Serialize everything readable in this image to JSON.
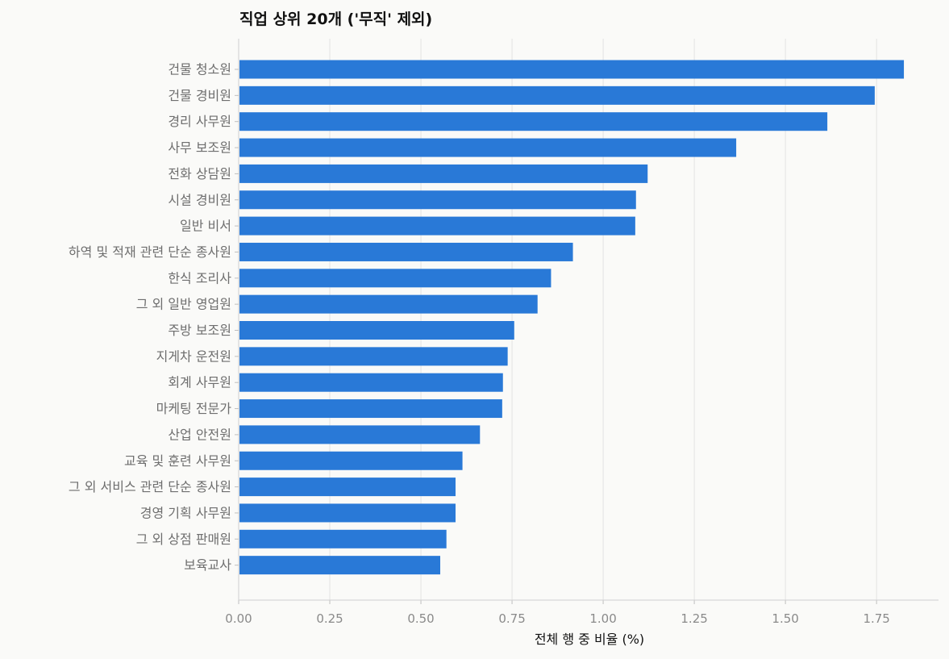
{
  "chart_data": {
    "type": "bar",
    "orientation": "horizontal",
    "title": "직업 상위 20개 ('무직' 제외)",
    "xlabel": "전체 행 중 비율 (%)",
    "ylabel": "",
    "xlim": [
      0,
      1.92
    ],
    "x_ticks": [
      0.0,
      0.25,
      0.5,
      0.75,
      1.0,
      1.25,
      1.5,
      1.75
    ],
    "x_tick_labels": [
      "0.00",
      "0.25",
      "0.50",
      "0.75",
      "1.00",
      "1.25",
      "1.50",
      "1.75"
    ],
    "grid": "vertical",
    "categories": [
      "건물 청소원",
      "건물 경비원",
      "경리 사무원",
      "사무 보조원",
      "전화 상담원",
      "시설 경비원",
      "일반 비서",
      "하역 및 적재 관련 단순 종사원",
      "한식 조리사",
      "그 외 일반 영업원",
      "주방 보조원",
      "지게차 운전원",
      "회계 사무원",
      "마케팅 전문가",
      "산업 안전원",
      "교육 및 훈련 사무원",
      "그 외 서비스 관련 단순 종사원",
      "경영 기획 사무원",
      "그 외 상점 판매원",
      "보육교사"
    ],
    "values": [
      1.825,
      1.745,
      1.615,
      1.365,
      1.122,
      1.09,
      1.088,
      0.917,
      0.857,
      0.82,
      0.756,
      0.738,
      0.725,
      0.723,
      0.662,
      0.614,
      0.595,
      0.595,
      0.57,
      0.553
    ],
    "bar_color": "#2979d7"
  }
}
